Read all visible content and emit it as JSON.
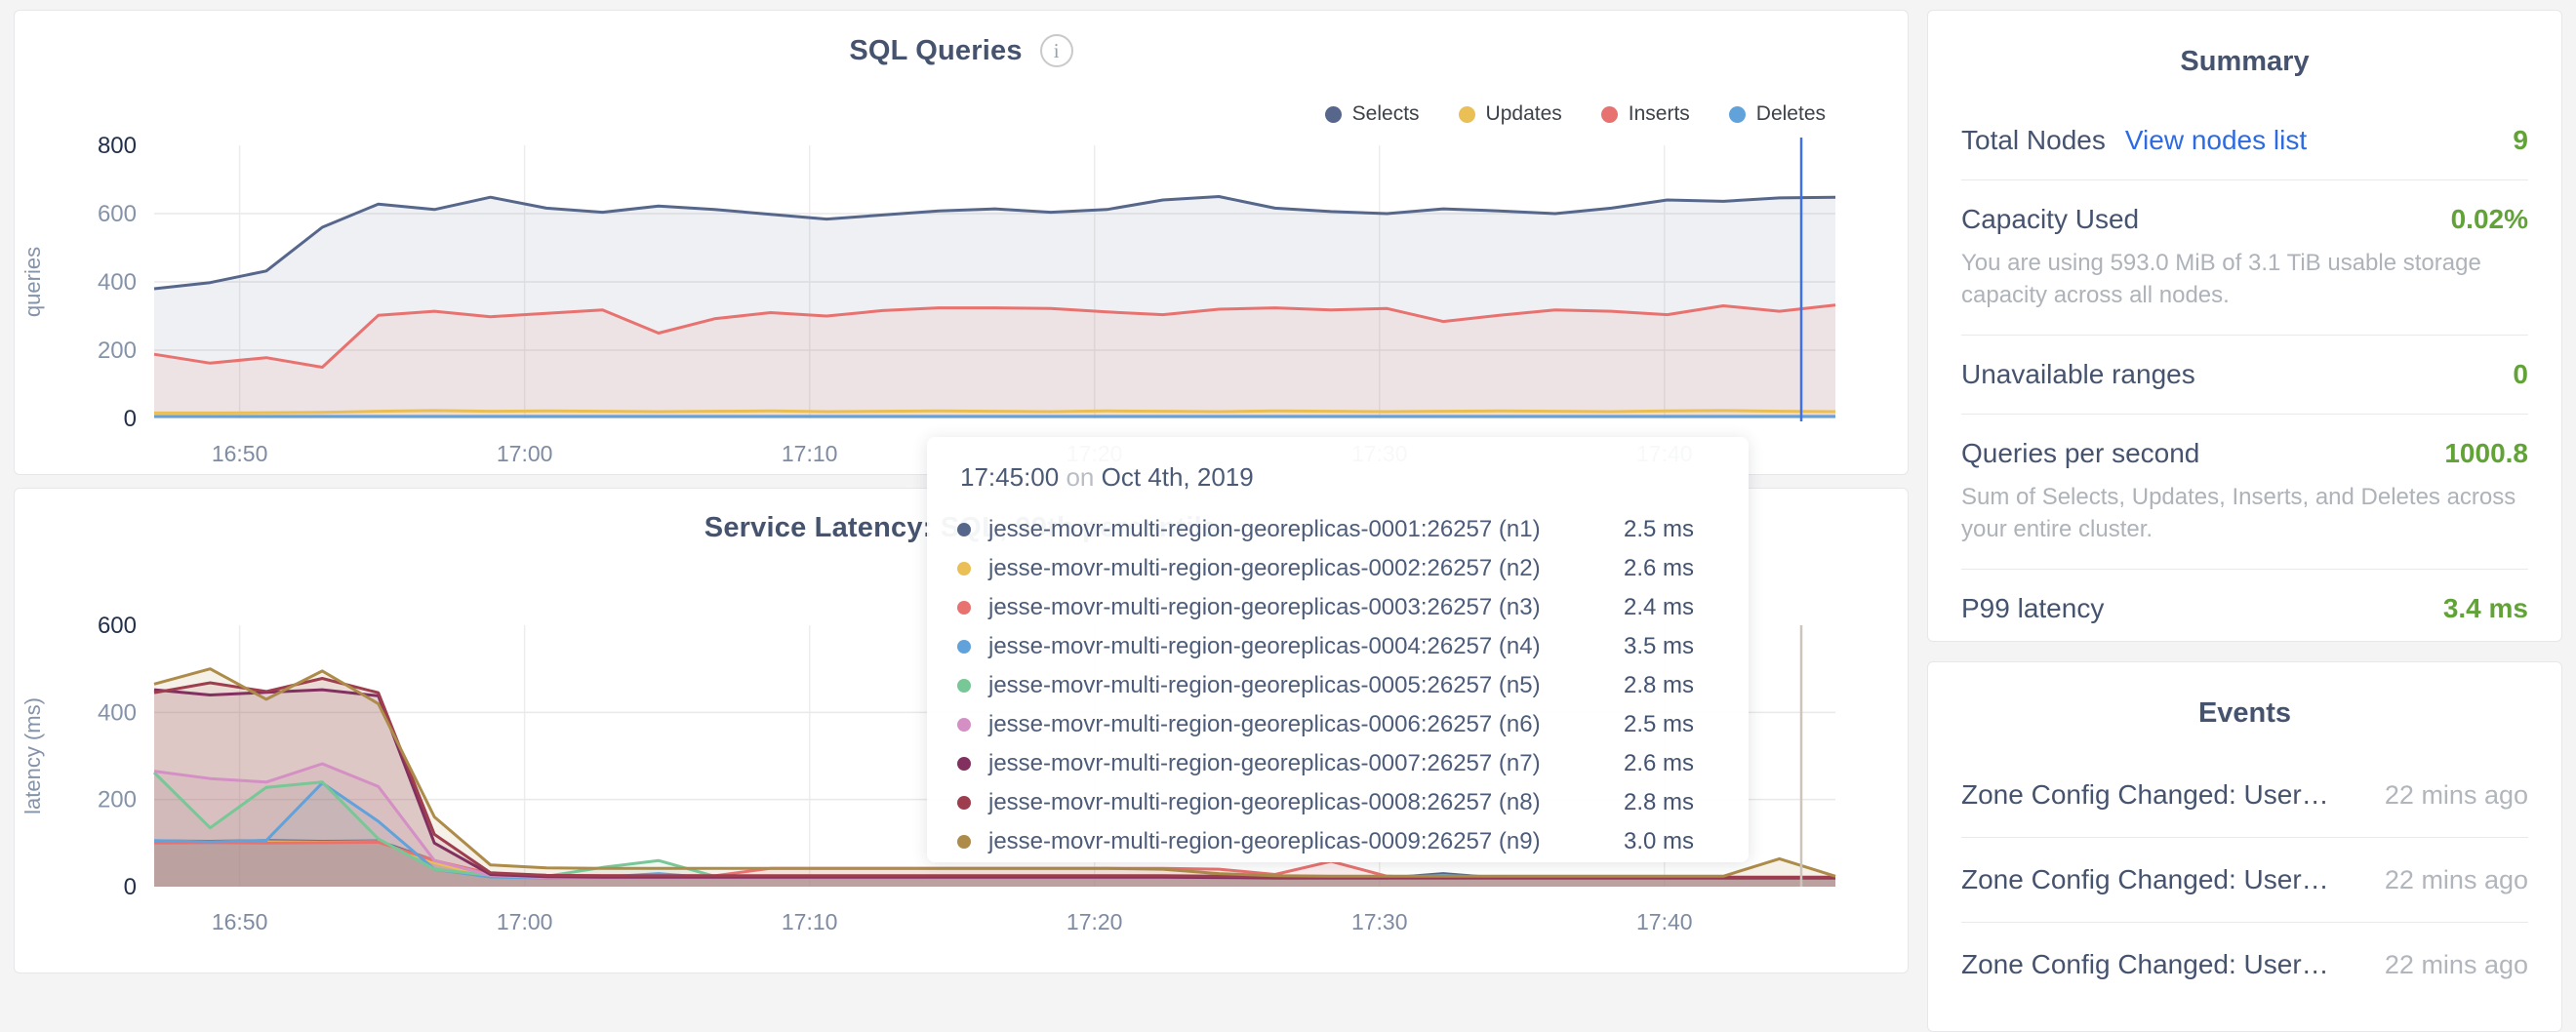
{
  "colors": {
    "accent_green": "#62a338",
    "link_blue": "#2d6be3",
    "slate_text": "#46536f",
    "muted_text": "#aeb2b9",
    "hover_line_chart1": "#3e70e8",
    "hover_line_chart2": "#ccc5bb"
  },
  "chart_data": [
    {
      "type": "area",
      "title": "SQL Queries",
      "info_icon": "i",
      "ylabel": "queries",
      "ymax": 800,
      "ylim": [
        0,
        800
      ],
      "yticks": [
        "800",
        "600",
        "400",
        "200",
        "0"
      ],
      "span_min": 59,
      "xticks": [
        {
          "label": "16:50",
          "min": 3
        },
        {
          "label": "17:00",
          "min": 13
        },
        {
          "label": "17:10",
          "min": 23
        },
        {
          "label": "17:20",
          "min": 33
        },
        {
          "label": "17:30",
          "min": 43
        },
        {
          "label": "17:40",
          "min": 53
        }
      ],
      "legend_position": "top-right",
      "grid": true,
      "series": [
        {
          "name": "Selects",
          "color": "#56678b",
          "values": [
            380,
            398,
            432,
            560,
            628,
            612,
            648,
            616,
            604,
            622,
            612,
            598,
            584,
            596,
            608,
            614,
            604,
            612,
            640,
            650,
            616,
            606,
            600,
            614,
            608,
            600,
            616,
            640,
            636,
            646,
            648
          ]
        },
        {
          "name": "Inserts",
          "color": "#e8726f",
          "values": [
            188,
            162,
            178,
            150,
            302,
            314,
            298,
            308,
            318,
            250,
            292,
            310,
            300,
            316,
            324,
            324,
            322,
            312,
            304,
            320,
            324,
            318,
            322,
            284,
            302,
            318,
            314,
            304,
            330,
            314,
            332
          ]
        },
        {
          "name": "Updates",
          "color": "#eabf55",
          "values": [
            16,
            16,
            17,
            18,
            21,
            23,
            21,
            22,
            21,
            20,
            21,
            22,
            20,
            21,
            22,
            21,
            20,
            22,
            21,
            20,
            22,
            21,
            20,
            21,
            22,
            21,
            20,
            22,
            23,
            21,
            20
          ]
        },
        {
          "name": "Deletes",
          "color": "#61a2da",
          "values": [
            6,
            6,
            6,
            6,
            6,
            6,
            6,
            6,
            6,
            6,
            6,
            6,
            6,
            6,
            6,
            6,
            6,
            6,
            6,
            6,
            6,
            6,
            6,
            6,
            6,
            6,
            6,
            6,
            6,
            6,
            6
          ]
        }
      ],
      "legend_order": [
        "Selects",
        "Updates",
        "Inserts",
        "Deletes"
      ]
    },
    {
      "type": "area",
      "title": "Service Latency: SQL, 99th percentile",
      "ylabel": "latency (ms)",
      "ymax": 600,
      "ylim": [
        0,
        600
      ],
      "yticks": [
        "600",
        "400",
        "200",
        "0"
      ],
      "span_min": 59,
      "xticks": [
        {
          "label": "16:50",
          "min": 3
        },
        {
          "label": "17:00",
          "min": 13
        },
        {
          "label": "17:10",
          "min": 23
        },
        {
          "label": "17:20",
          "min": 33
        },
        {
          "label": "17:30",
          "min": 43
        },
        {
          "label": "17:40",
          "min": 53
        }
      ],
      "grid": true,
      "series": [
        {
          "name": "n1",
          "color": "#56678b",
          "values": [
            105,
            104,
            106,
            104,
            105,
            60,
            24,
            20,
            20,
            20,
            20,
            20,
            20,
            20,
            20,
            20,
            20,
            20,
            20,
            20,
            20,
            20,
            20,
            30,
            20,
            20,
            20,
            20,
            20,
            20,
            20
          ]
        },
        {
          "name": "n2",
          "color": "#eabf55",
          "values": [
            103,
            102,
            103,
            102,
            103,
            55,
            22,
            20,
            20,
            20,
            20,
            20,
            20,
            20,
            20,
            20,
            20,
            20,
            20,
            20,
            20,
            20,
            20,
            20,
            20,
            20,
            20,
            20,
            20,
            20,
            20
          ]
        },
        {
          "name": "n3",
          "color": "#e8726f",
          "values": [
            100,
            101,
            100,
            101,
            102,
            60,
            30,
            26,
            25,
            25,
            25,
            42,
            42,
            42,
            42,
            42,
            42,
            42,
            42,
            40,
            28,
            58,
            24,
            20,
            20,
            20,
            20,
            20,
            20,
            20,
            20
          ]
        },
        {
          "name": "n4",
          "color": "#61a2da",
          "values": [
            106,
            103,
            106,
            238,
            150,
            40,
            22,
            20,
            22,
            30,
            20,
            20,
            20,
            20,
            20,
            20,
            20,
            20,
            20,
            20,
            20,
            20,
            20,
            26,
            20,
            20,
            20,
            20,
            20,
            20,
            20
          ]
        },
        {
          "name": "n5",
          "color": "#78c796",
          "values": [
            262,
            135,
            228,
            240,
            110,
            40,
            26,
            24,
            44,
            60,
            24,
            20,
            20,
            20,
            20,
            20,
            20,
            20,
            20,
            20,
            20,
            20,
            20,
            24,
            20,
            20,
            20,
            20,
            20,
            20,
            20
          ]
        },
        {
          "name": "n6",
          "color": "#d490c5",
          "values": [
            265,
            248,
            240,
            282,
            230,
            60,
            26,
            21,
            20,
            20,
            20,
            20,
            20,
            20,
            20,
            20,
            20,
            20,
            20,
            20,
            20,
            20,
            20,
            20,
            20,
            20,
            20,
            20,
            20,
            20,
            20
          ]
        },
        {
          "name": "n7",
          "color": "#81305f",
          "values": [
            452,
            440,
            446,
            452,
            438,
            100,
            28,
            23,
            22,
            22,
            22,
            22,
            22,
            22,
            22,
            22,
            22,
            22,
            22,
            21,
            20,
            20,
            20,
            20,
            20,
            20,
            20,
            20,
            20,
            20,
            20
          ]
        },
        {
          "name": "n8",
          "color": "#9e3d4d",
          "values": [
            445,
            468,
            448,
            478,
            445,
            120,
            32,
            26,
            25,
            25,
            25,
            25,
            25,
            25,
            25,
            25,
            25,
            25,
            25,
            24,
            22,
            22,
            22,
            22,
            22,
            22,
            22,
            22,
            22,
            22,
            22
          ]
        },
        {
          "name": "n9",
          "color": "#ad8b49",
          "values": [
            465,
            500,
            430,
            495,
            420,
            160,
            50,
            43,
            42,
            42,
            42,
            42,
            42,
            42,
            42,
            42,
            42,
            42,
            40,
            30,
            25,
            24,
            24,
            24,
            24,
            24,
            24,
            24,
            24,
            64,
            24
          ]
        }
      ]
    }
  ],
  "tooltip": {
    "time": "17:45:00",
    "joiner": "on",
    "date": "Oct 4th, 2019",
    "rows": [
      {
        "name": "jesse-movr-multi-region-georeplicas-0001:26257 (n1)",
        "value": "2.5 ms",
        "color": "#56678b"
      },
      {
        "name": "jesse-movr-multi-region-georeplicas-0002:26257 (n2)",
        "value": "2.6 ms",
        "color": "#eabf55"
      },
      {
        "name": "jesse-movr-multi-region-georeplicas-0003:26257 (n3)",
        "value": "2.4 ms",
        "color": "#e8726f"
      },
      {
        "name": "jesse-movr-multi-region-georeplicas-0004:26257 (n4)",
        "value": "3.5 ms",
        "color": "#61a2da"
      },
      {
        "name": "jesse-movr-multi-region-georeplicas-0005:26257 (n5)",
        "value": "2.8 ms",
        "color": "#78c796"
      },
      {
        "name": "jesse-movr-multi-region-georeplicas-0006:26257 (n6)",
        "value": "2.5 ms",
        "color": "#d490c5"
      },
      {
        "name": "jesse-movr-multi-region-georeplicas-0007:26257 (n7)",
        "value": "2.6 ms",
        "color": "#81305f"
      },
      {
        "name": "jesse-movr-multi-region-georeplicas-0008:26257 (n8)",
        "value": "2.8 ms",
        "color": "#9e3d4d"
      },
      {
        "name": "jesse-movr-multi-region-georeplicas-0009:26257 (n9)",
        "value": "3.0 ms",
        "color": "#ad8b49"
      }
    ]
  },
  "summary": {
    "title": "Summary",
    "rows": {
      "total_nodes": {
        "label": "Total Nodes",
        "link": "View nodes list",
        "value": "9"
      },
      "capacity": {
        "label": "Capacity Used",
        "value": "0.02%",
        "description": "You are using 593.0 MiB of 3.1 TiB usable storage capacity across all nodes."
      },
      "unavailable": {
        "label": "Unavailable ranges",
        "value": "0"
      },
      "qps": {
        "label": "Queries per second",
        "value": "1000.8",
        "description": "Sum of Selects, Updates, Inserts, and Deletes across your entire cluster."
      },
      "p99": {
        "label": "P99 latency",
        "value": "3.4 ms"
      }
    }
  },
  "events": {
    "title": "Events",
    "items": [
      {
        "title": "Zone Config Changed: User…",
        "time": "22 mins ago"
      },
      {
        "title": "Zone Config Changed: User…",
        "time": "22 mins ago"
      },
      {
        "title": "Zone Config Changed: User…",
        "time": "22 mins ago"
      }
    ]
  }
}
